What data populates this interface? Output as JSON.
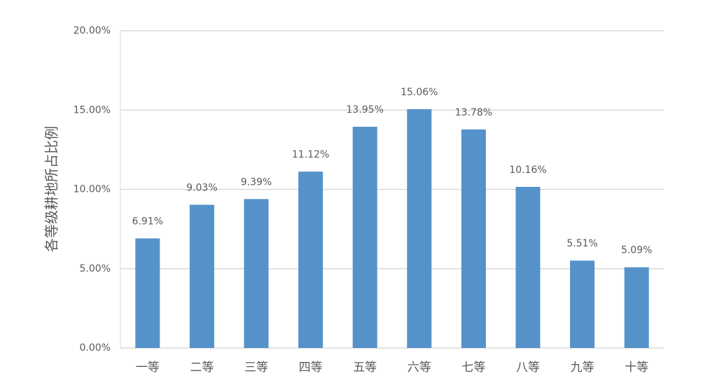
{
  "chart_data": {
    "type": "bar",
    "y_label": "各等级耕地所占比例",
    "categories": [
      "一等",
      "二等",
      "三等",
      "四等",
      "五等",
      "六等",
      "七等",
      "八等",
      "九等",
      "十等"
    ],
    "values": [
      6.91,
      9.03,
      9.39,
      11.12,
      13.95,
      15.06,
      13.78,
      10.16,
      5.51,
      5.09
    ],
    "value_labels": [
      "6.91%",
      "9.03%",
      "9.39%",
      "11.12%",
      "13.95%",
      "15.06%",
      "13.78%",
      "10.16%",
      "5.51%",
      "5.09%"
    ],
    "color": "#5592c9",
    "ylim": [
      0,
      20
    ],
    "yticks": [
      {
        "value": 0,
        "label": "0.00%"
      },
      {
        "value": 5,
        "label": "5.00%"
      },
      {
        "value": 10,
        "label": "10.00%"
      },
      {
        "value": 15,
        "label": "15.00%"
      },
      {
        "value": 20,
        "label": "20.00%"
      }
    ],
    "grid": true
  }
}
